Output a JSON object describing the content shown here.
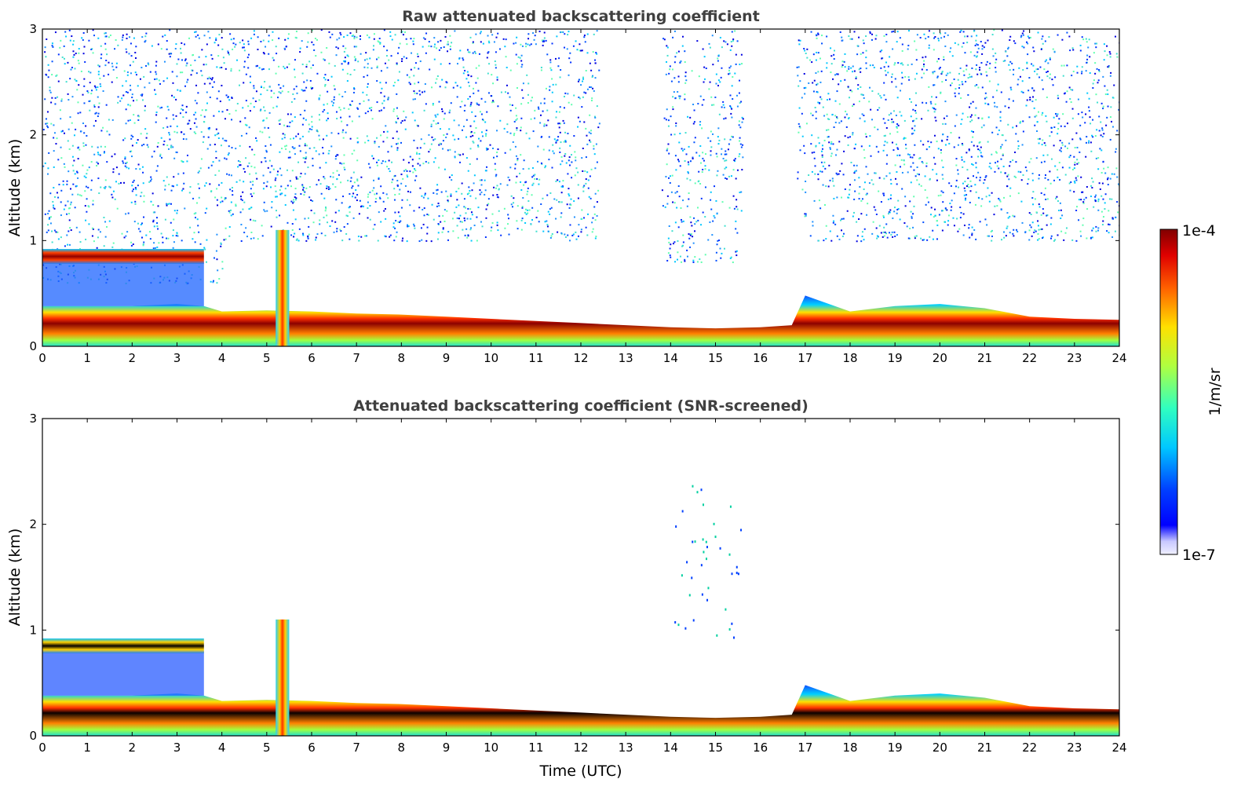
{
  "colorbar": {
    "max_label": "1e-4",
    "min_label": "1e-7",
    "unit_label": "1/m/sr",
    "colormap": "jet",
    "scale": "log",
    "range": [
      1e-07,
      0.0001
    ]
  },
  "chart_data": [
    {
      "type": "heatmap",
      "title": "Raw attenuated backscattering coefficient",
      "xlabel": "",
      "ylabel": "Altitude (km)",
      "xlim": [
        0,
        24
      ],
      "ylim": [
        0,
        3
      ],
      "xticks": [
        "0",
        "1",
        "2",
        "3",
        "4",
        "5",
        "6",
        "7",
        "8",
        "9",
        "10",
        "11",
        "12",
        "13",
        "14",
        "15",
        "16",
        "17",
        "18",
        "19",
        "20",
        "21",
        "22",
        "23",
        "24"
      ],
      "yticks": [
        "0",
        "1",
        "2",
        "3"
      ],
      "noise_background": true,
      "boundary_layer_top_km": {
        "time": [
          0,
          1,
          2,
          3,
          3.6,
          4,
          5,
          6,
          7,
          8,
          9,
          10,
          11,
          12,
          13,
          14,
          15,
          16,
          16.7,
          17,
          18,
          19,
          20,
          21,
          22,
          23,
          24
        ],
        "height": [
          0.3,
          0.3,
          0.3,
          0.32,
          0.3,
          0.25,
          0.26,
          0.25,
          0.23,
          0.22,
          0.2,
          0.18,
          0.16,
          0.14,
          0.12,
          0.1,
          0.09,
          0.1,
          0.12,
          0.4,
          0.25,
          0.3,
          0.32,
          0.28,
          0.2,
          0.18,
          0.17
        ]
      },
      "cloud_layer_km": {
        "time": [
          0,
          3.6
        ],
        "height": [
          0.78,
          0.92
        ]
      },
      "plume_km": {
        "time": [
          5.2,
          5.5
        ],
        "height": [
          0,
          1.1
        ]
      }
    },
    {
      "type": "heatmap",
      "title": "Attenuated backscattering coefficient (SNR-screened)",
      "xlabel": "Time (UTC)",
      "ylabel": "Altitude (km)",
      "xlim": [
        0,
        24
      ],
      "ylim": [
        0,
        3
      ],
      "xticks": [
        "0",
        "1",
        "2",
        "3",
        "4",
        "5",
        "6",
        "7",
        "8",
        "9",
        "10",
        "11",
        "12",
        "13",
        "14",
        "15",
        "16",
        "17",
        "18",
        "19",
        "20",
        "21",
        "22",
        "23",
        "24"
      ],
      "yticks": [
        "0",
        "1",
        "2",
        "3"
      ],
      "noise_background": false,
      "boundary_layer_top_km": {
        "time": [
          0,
          1,
          2,
          3,
          3.6,
          4,
          5,
          6,
          7,
          8,
          9,
          10,
          11,
          12,
          13,
          14,
          15,
          16,
          16.7,
          17,
          18,
          19,
          20,
          21,
          22,
          23,
          24
        ],
        "height": [
          0.3,
          0.3,
          0.3,
          0.32,
          0.3,
          0.25,
          0.26,
          0.25,
          0.23,
          0.22,
          0.2,
          0.18,
          0.16,
          0.14,
          0.12,
          0.1,
          0.09,
          0.1,
          0.12,
          0.4,
          0.25,
          0.3,
          0.32,
          0.28,
          0.2,
          0.18,
          0.17
        ]
      },
      "cloud_layer_km": {
        "time": [
          0,
          3.6
        ],
        "height": [
          0.78,
          0.92
        ]
      },
      "plume_km": {
        "time": [
          5.2,
          5.5
        ],
        "height": [
          0,
          1.1
        ]
      }
    }
  ]
}
